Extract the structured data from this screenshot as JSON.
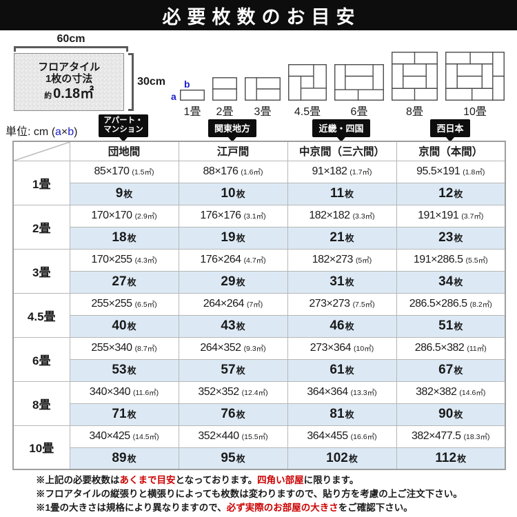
{
  "title": "必要枚数のお目安",
  "tile_figure": {
    "width_label": "60cm",
    "height_label": "30cm",
    "name_line1": "フロアタイル",
    "name_line2": "1枚の寸法",
    "area_prefix": "約",
    "area_value": "0.18㎡"
  },
  "axis_labels": {
    "a": "a",
    "b": "b"
  },
  "unit_line": {
    "prefix": "単位: cm",
    "open": "(",
    "a": "a",
    "times": "×",
    "b": "b",
    "close": ")"
  },
  "diagrams": {
    "labels": [
      "1畳",
      "2畳",
      "3畳",
      "4.5畳",
      "6畳",
      "8畳",
      "10畳"
    ]
  },
  "badges": [
    {
      "lines": [
        "アパート・",
        "マンション"
      ]
    },
    {
      "lines": [
        "関東地方"
      ]
    },
    {
      "lines": [
        "近畿・四国"
      ]
    },
    {
      "lines": [
        "西日本"
      ]
    }
  ],
  "table": {
    "headers": [
      "団地間",
      "江戸間",
      "中京間（三六間）",
      "京間（本間）"
    ],
    "count_unit": "枚",
    "rows": [
      {
        "size": "1畳",
        "cells": [
          {
            "dim": "85×170",
            "area": "(1.5㎡)",
            "count": "9"
          },
          {
            "dim": "88×176",
            "area": "(1.6㎡)",
            "count": "10"
          },
          {
            "dim": "91×182",
            "area": "(1.7㎡)",
            "count": "11"
          },
          {
            "dim": "95.5×191",
            "area": "(1.8㎡)",
            "count": "12"
          }
        ]
      },
      {
        "size": "2畳",
        "cells": [
          {
            "dim": "170×170",
            "area": "(2.9㎡)",
            "count": "18"
          },
          {
            "dim": "176×176",
            "area": "(3.1㎡)",
            "count": "19"
          },
          {
            "dim": "182×182",
            "area": "(3.3㎡)",
            "count": "21"
          },
          {
            "dim": "191×191",
            "area": "(3.7㎡)",
            "count": "23"
          }
        ]
      },
      {
        "size": "3畳",
        "cells": [
          {
            "dim": "170×255",
            "area": "(4.3㎡)",
            "count": "27"
          },
          {
            "dim": "176×264",
            "area": "(4.7㎡)",
            "count": "29"
          },
          {
            "dim": "182×273",
            "area": "(5㎡)",
            "count": "31"
          },
          {
            "dim": "191×286.5",
            "area": "(5.5㎡)",
            "count": "34"
          }
        ]
      },
      {
        "size": "4.5畳",
        "cells": [
          {
            "dim": "255×255",
            "area": "(6.5㎡)",
            "count": "40"
          },
          {
            "dim": "264×264",
            "area": "(7㎡)",
            "count": "43"
          },
          {
            "dim": "273×273",
            "area": "(7.5㎡)",
            "count": "46"
          },
          {
            "dim": "286.5×286.5",
            "area": "(8.2㎡)",
            "count": "51"
          }
        ]
      },
      {
        "size": "6畳",
        "cells": [
          {
            "dim": "255×340",
            "area": "(8.7㎡)",
            "count": "53"
          },
          {
            "dim": "264×352",
            "area": "(9.3㎡)",
            "count": "57"
          },
          {
            "dim": "273×364",
            "area": "(10㎡)",
            "count": "61"
          },
          {
            "dim": "286.5×382",
            "area": "(11㎡)",
            "count": "67"
          }
        ]
      },
      {
        "size": "8畳",
        "cells": [
          {
            "dim": "340×340",
            "area": "(11.6㎡)",
            "count": "71"
          },
          {
            "dim": "352×352",
            "area": "(12.4㎡)",
            "count": "76"
          },
          {
            "dim": "364×364",
            "area": "(13.3㎡)",
            "count": "81"
          },
          {
            "dim": "382×382",
            "area": "(14.6㎡)",
            "count": "90"
          }
        ]
      },
      {
        "size": "10畳",
        "cells": [
          {
            "dim": "340×425",
            "area": "(14.5㎡)",
            "count": "89"
          },
          {
            "dim": "352×440",
            "area": "(15.5㎡)",
            "count": "95"
          },
          {
            "dim": "364×455",
            "area": "(16.6㎡)",
            "count": "102"
          },
          {
            "dim": "382×477.5",
            "area": "(18.3㎡)",
            "count": "112"
          }
        ]
      }
    ]
  },
  "notes": [
    [
      {
        "t": "※上記の必要枚数は"
      },
      {
        "t": "あくまで目安",
        "red": true
      },
      {
        "t": "となっております。"
      },
      {
        "t": "四角い部屋",
        "red": true
      },
      {
        "t": "に限ります。"
      }
    ],
    [
      {
        "t": "※フロアタイルの縦張りと横張りによっても枚数は変わりますので、貼り方を考慮の上ご注文下さい。"
      }
    ],
    [
      {
        "t": "※1畳の大きさは規格により異なりますので、"
      },
      {
        "t": "必ず実際のお部屋の大きさ",
        "red": true
      },
      {
        "t": "をご確認下さい。"
      }
    ]
  ],
  "colors": {
    "banner_bg": "#0d0d0d",
    "count_row_bg": "#dce9f5",
    "accent_blue": "#1a1acd",
    "highlight_red": "#cc0000"
  }
}
